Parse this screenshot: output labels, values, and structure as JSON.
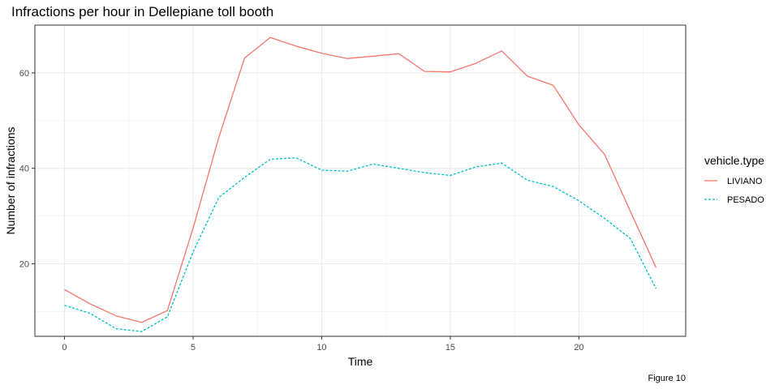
{
  "chart_data": {
    "type": "line",
    "title": "Infractions per hour in Dellepiane toll booth",
    "xlabel": "Time",
    "ylabel": "Number of infractions",
    "caption": "Figure 10",
    "xlim": [
      -1.15,
      24.15
    ],
    "ylim": [
      4.8,
      70.0
    ],
    "x_ticks": [
      0,
      5,
      10,
      15,
      20
    ],
    "x_tick_labels": [
      "0",
      "5",
      "10",
      "15",
      "20"
    ],
    "y_ticks": [
      20,
      40,
      60
    ],
    "y_tick_labels": [
      "20",
      "40",
      "60"
    ],
    "grid": true,
    "legend": {
      "title": "vehicle.type",
      "position": "right"
    },
    "x": [
      0,
      1,
      2,
      3,
      4,
      5,
      6,
      7,
      8,
      9,
      10,
      11,
      12,
      13,
      14,
      15,
      16,
      17,
      18,
      19,
      20,
      21,
      22,
      23
    ],
    "series": [
      {
        "name": "LIVIANO",
        "color": "#F8766D",
        "linetype": "solid",
        "values": [
          14.6,
          11.6,
          9.1,
          7.7,
          10.2,
          27.5,
          46.5,
          63.1,
          67.4,
          65.6,
          64.1,
          63.0,
          63.5,
          64.0,
          60.3,
          60.2,
          62.0,
          64.6,
          59.3,
          57.4,
          49.1,
          42.9,
          31.0,
          19.2
        ]
      },
      {
        "name": "PESADO",
        "color": "#00BFC4",
        "linetype": "dashed",
        "values": [
          11.3,
          9.6,
          6.4,
          5.8,
          8.9,
          22.5,
          33.9,
          38.1,
          41.9,
          42.2,
          39.6,
          39.4,
          40.9,
          40.0,
          39.1,
          38.5,
          40.3,
          41.1,
          37.5,
          36.2,
          33.2,
          29.5,
          25.3,
          14.8
        ]
      }
    ]
  }
}
